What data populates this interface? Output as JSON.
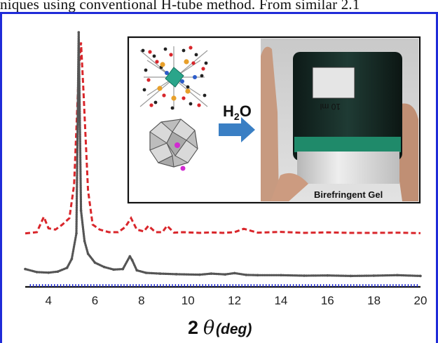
{
  "page_text": {
    "top_line": "niques using conventional H-tube method. From similar 2.1"
  },
  "colors": {
    "frame": "#1f2bd8",
    "series_top": "#d9262b",
    "series_bottom": "#555555",
    "baseline_ticks": "#1e2ad6",
    "arrow": "#3a7fc4",
    "gel": "#1f8a6a"
  },
  "inset": {
    "reaction_label": "H2O",
    "photo_label": "Birefringent Gel",
    "vial_label": "10 ml"
  },
  "icons": {
    "structure_top": "molecular-framework-icon",
    "structure_bottom": "polyoxometalate-cluster-icon",
    "arrow": "right-arrow-icon"
  },
  "chart_data": {
    "type": "line",
    "xlabel": "2 θ (deg)",
    "xlabel_parts": {
      "num": "2",
      "theta": "θ",
      "unit": "(deg)"
    },
    "ylabel": "",
    "x_ticks": [
      "4",
      "6",
      "8",
      "10",
      "12",
      "14",
      "16",
      "18",
      "20"
    ],
    "xlim": [
      3,
      20
    ],
    "ylim": [
      0,
      100
    ],
    "grid": false,
    "series": [
      {
        "style": "dashed",
        "color": "#d9262b",
        "x": [
          3.0,
          3.5,
          3.8,
          4.0,
          4.3,
          4.6,
          4.9,
          5.1,
          5.3,
          5.4,
          5.5,
          5.7,
          5.9,
          6.2,
          6.6,
          7.0,
          7.3,
          7.55,
          7.8,
          8.1,
          8.3,
          8.6,
          8.9,
          9.1,
          9.4,
          9.8,
          10.5,
          11.0,
          11.5,
          12.0,
          12.4,
          13.0,
          14.0,
          15.0,
          16.0,
          17.0,
          18.0,
          19.0,
          20.0
        ],
        "y": [
          21.0,
          21.5,
          27.5,
          23.0,
          22.5,
          24.5,
          27.0,
          40.0,
          84.0,
          96.0,
          78.0,
          38.0,
          24.5,
          22.5,
          21.5,
          21.5,
          23.5,
          27.0,
          22.5,
          21.8,
          24.0,
          21.5,
          21.5,
          24.0,
          21.3,
          21.5,
          21.2,
          21.4,
          21.2,
          21.5,
          22.8,
          21.3,
          21.6,
          21.2,
          21.4,
          21.2,
          21.2,
          21.3,
          21.1
        ]
      },
      {
        "style": "dotted",
        "color": "#555555",
        "x": [
          3.0,
          3.5,
          4.0,
          4.4,
          4.8,
          5.0,
          5.2,
          5.3,
          5.4,
          5.55,
          5.7,
          6.0,
          6.4,
          6.8,
          7.2,
          7.5,
          7.6,
          7.8,
          8.2,
          8.8,
          9.5,
          10.5,
          11.0,
          11.6,
          12.0,
          12.5,
          13.0,
          14.0,
          15.0,
          16.0,
          17.0,
          18.0,
          19.0,
          20.0
        ],
        "y": [
          7.0,
          5.8,
          5.6,
          6.0,
          7.5,
          11.0,
          21.0,
          100.0,
          30.0,
          18.0,
          13.0,
          9.5,
          7.8,
          6.8,
          7.0,
          12.0,
          10.5,
          6.5,
          5.5,
          5.2,
          5.0,
          4.8,
          5.2,
          4.9,
          5.4,
          4.7,
          4.6,
          4.6,
          4.4,
          4.5,
          4.3,
          4.4,
          4.6,
          4.3
        ]
      }
    ]
  }
}
